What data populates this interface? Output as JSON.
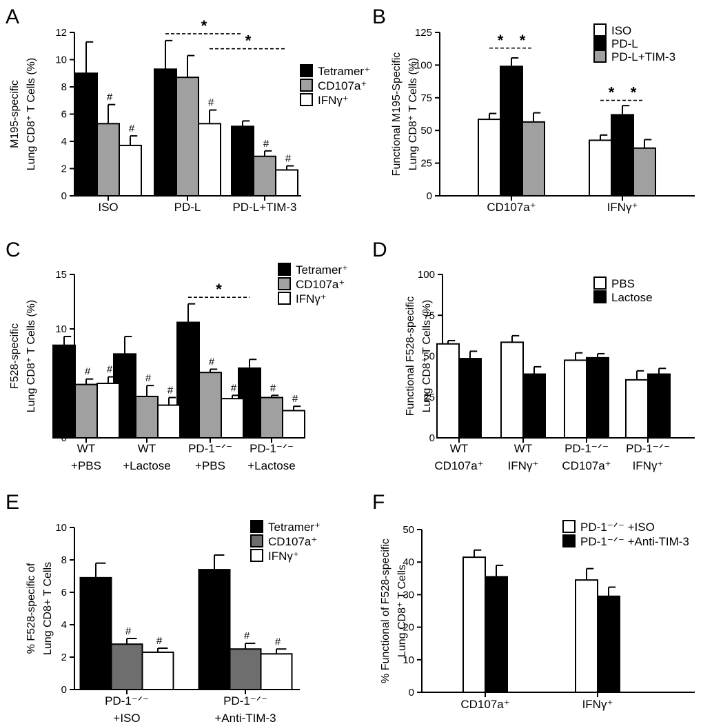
{
  "colors": {
    "black": "#000000",
    "gray": "#a0a0a0",
    "dark_gray": "#6e6e6e",
    "white": "#ffffff"
  },
  "chart_data": [
    {
      "id": "A",
      "type": "bar",
      "panel_label": "A",
      "ylabel_lines": [
        "M195-specific",
        "Lung CD8⁺ T Cells (%)"
      ],
      "ylim": [
        0,
        12
      ],
      "yticks": [
        0,
        2,
        4,
        6,
        8,
        10,
        12
      ],
      "categories": [
        "ISO",
        "PD-L",
        "PD-L+TIM-3"
      ],
      "series": [
        {
          "name": "Tetramer⁺",
          "color": "black",
          "values": [
            9.0,
            9.3,
            5.1
          ],
          "errors": [
            2.3,
            2.1,
            0.4
          ],
          "marks": [
            "",
            "",
            ""
          ]
        },
        {
          "name": "CD107a⁺",
          "color": "gray",
          "values": [
            5.3,
            8.7,
            2.9
          ],
          "errors": [
            1.4,
            1.6,
            0.4
          ],
          "marks": [
            "#",
            "",
            "#"
          ]
        },
        {
          "name": "IFNγ⁺",
          "color": "white",
          "values": [
            3.7,
            5.3,
            1.9
          ],
          "errors": [
            0.7,
            1.0,
            0.3
          ],
          "marks": [
            "#",
            "#",
            "#"
          ]
        }
      ],
      "legend_position": "right",
      "significance": [
        {
          "label": "*",
          "from": [
            1,
            0
          ],
          "to": [
            2,
            0
          ],
          "y": 11.9
        },
        {
          "label": "*",
          "from": [
            1,
            2
          ],
          "to": [
            2,
            2
          ],
          "y": 10.8
        }
      ]
    },
    {
      "id": "B",
      "type": "bar",
      "panel_label": "B",
      "ylabel_lines": [
        "Functional M195-Specific",
        "Lung CD8⁺ T Cells (%)"
      ],
      "ylim": [
        0,
        125
      ],
      "yticks": [
        0,
        25,
        50,
        75,
        100,
        125
      ],
      "categories": [
        "CD107a⁺",
        "IFNγ⁺"
      ],
      "series": [
        {
          "name": "ISO",
          "color": "white",
          "values": [
            58.5,
            42.5
          ],
          "errors": [
            4.5,
            4.0
          ],
          "marks": [
            "",
            ""
          ]
        },
        {
          "name": "PD-L",
          "color": "black",
          "values": [
            99,
            62
          ],
          "errors": [
            6.5,
            7.0
          ],
          "marks": [
            "",
            ""
          ]
        },
        {
          "name": "PD-L+TIM-3",
          "color": "gray",
          "values": [
            56.5,
            36.5
          ],
          "errors": [
            7.0,
            6.5
          ],
          "marks": [
            "",
            ""
          ]
        }
      ],
      "legend_position": "top-right",
      "significance": [
        {
          "label": "*",
          "from": [
            0,
            0
          ],
          "to": [
            0,
            1
          ],
          "y": 113
        },
        {
          "label": "*",
          "from": [
            0,
            1
          ],
          "to": [
            0,
            2
          ],
          "y": 113
        },
        {
          "label": "*",
          "from": [
            1,
            0
          ],
          "to": [
            1,
            1
          ],
          "y": 73
        },
        {
          "label": "*",
          "from": [
            1,
            1
          ],
          "to": [
            1,
            2
          ],
          "y": 73
        }
      ]
    },
    {
      "id": "C",
      "type": "bar",
      "panel_label": "C",
      "ylabel_lines": [
        "F528-specific",
        "Lung CD8⁺ T Cells (%)"
      ],
      "ylim": [
        0,
        15
      ],
      "yticks": [
        0,
        5,
        10,
        15
      ],
      "categories": [
        "WT\n+PBS",
        "WT\n+Lactose",
        "PD-1⁻ᐟ⁻\n+PBS",
        "PD-1⁻ᐟ⁻\n+Lactose"
      ],
      "series": [
        {
          "name": "Tetramer⁺",
          "color": "black",
          "values": [
            8.5,
            7.7,
            10.6,
            6.4
          ],
          "errors": [
            0.8,
            1.6,
            1.7,
            0.8
          ],
          "marks": [
            "",
            "",
            "",
            ""
          ]
        },
        {
          "name": "CD107a⁺",
          "color": "gray",
          "values": [
            4.9,
            3.8,
            6.0,
            3.7
          ],
          "errors": [
            0.5,
            1.0,
            0.3,
            0.2
          ],
          "marks": [
            "#",
            "#",
            "#",
            "#"
          ]
        },
        {
          "name": "IFNγ⁺",
          "color": "white",
          "values": [
            5.0,
            3.0,
            3.6,
            2.5
          ],
          "errors": [
            0.6,
            0.7,
            0.3,
            0.4
          ],
          "marks": [
            "#",
            "#",
            "#",
            "#"
          ]
        }
      ],
      "legend_position": "top-right",
      "significance": [
        {
          "label": "*",
          "from": [
            2,
            0
          ],
          "to": [
            3,
            0
          ],
          "y": 12.9
        }
      ]
    },
    {
      "id": "D",
      "type": "bar",
      "panel_label": "D",
      "ylabel_lines": [
        "Functional F528-specific",
        "Lung CD8⁺ T Cells (%)"
      ],
      "ylim": [
        0,
        100
      ],
      "yticks": [
        0,
        25,
        50,
        75,
        100
      ],
      "categories": [
        "WT\nCD107a⁺",
        "WT\nIFNγ⁺",
        "PD-1⁻ᐟ⁻\nCD107a⁺",
        "PD-1⁻ᐟ⁻\nIFNγ⁺"
      ],
      "series": [
        {
          "name": "PBS",
          "color": "white",
          "values": [
            57.5,
            58.5,
            47.5,
            35.5
          ],
          "errors": [
            2.0,
            4.0,
            4.5,
            5.5
          ],
          "marks": [
            "",
            "",
            "",
            ""
          ]
        },
        {
          "name": "Lactose",
          "color": "black",
          "values": [
            48.5,
            39.0,
            49.0,
            39.0
          ],
          "errors": [
            4.5,
            4.5,
            2.5,
            3.5
          ],
          "marks": [
            "",
            "",
            "",
            ""
          ]
        }
      ],
      "legend_position": "top-right",
      "significance": []
    },
    {
      "id": "E",
      "type": "bar",
      "panel_label": "E",
      "ylabel_lines": [
        "% F528-specific of",
        "Lung CD8+ T Cells"
      ],
      "ylim": [
        0,
        10
      ],
      "yticks": [
        0,
        2,
        4,
        6,
        8,
        10
      ],
      "categories": [
        "PD-1⁻ᐟ⁻\n+ISO",
        "PD-1⁻ᐟ⁻\n+Anti-TIM-3"
      ],
      "series": [
        {
          "name": "Tetramer⁺",
          "color": "black",
          "values": [
            6.9,
            7.4
          ],
          "errors": [
            0.9,
            0.9
          ],
          "marks": [
            "",
            ""
          ]
        },
        {
          "name": "CD107a⁺",
          "color": "dark_gray",
          "values": [
            2.8,
            2.5
          ],
          "errors": [
            0.35,
            0.35
          ],
          "marks": [
            "#",
            "#"
          ]
        },
        {
          "name": "IFNγ⁺",
          "color": "white",
          "values": [
            2.3,
            2.2
          ],
          "errors": [
            0.25,
            0.3
          ],
          "marks": [
            "#",
            "#"
          ]
        }
      ],
      "legend_position": "top-right",
      "significance": []
    },
    {
      "id": "F",
      "type": "bar",
      "panel_label": "F",
      "ylabel_lines": [
        "% Functional of F528-specific",
        "Lung CD8⁺ T Cells"
      ],
      "ylim": [
        0,
        50
      ],
      "yticks": [
        0,
        10,
        20,
        30,
        40,
        50
      ],
      "categories": [
        "CD107a⁺",
        "IFNγ⁺"
      ],
      "series": [
        {
          "name": "PD-1⁻ᐟ⁻ +ISO",
          "color": "white",
          "values": [
            41.5,
            34.5
          ],
          "errors": [
            2.2,
            3.5
          ],
          "marks": [
            "",
            ""
          ]
        },
        {
          "name": "PD-1⁻ᐟ⁻ +Anti-TIM-3",
          "color": "black",
          "values": [
            35.5,
            29.5
          ],
          "errors": [
            3.5,
            2.8
          ],
          "marks": [
            "",
            ""
          ]
        }
      ],
      "legend_position": "top-right",
      "significance": []
    }
  ]
}
